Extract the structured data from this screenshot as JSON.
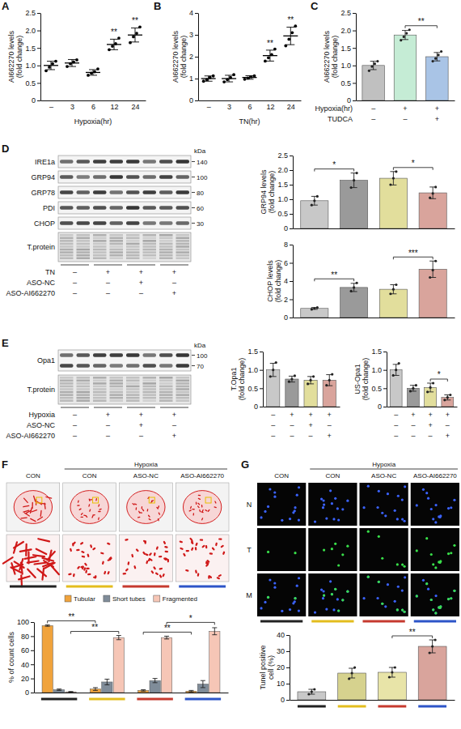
{
  "chart_data": [
    {
      "panel": "A",
      "type": "dot",
      "y_label": "AI662270 levels (fold change)",
      "x_label": "Hypoxia(hr)",
      "categories": [
        "–",
        "3",
        "6",
        "12",
        "24"
      ],
      "values": [
        1.0,
        1.07,
        0.8,
        1.6,
        1.87
      ],
      "errors": [
        0.12,
        0.1,
        0.08,
        0.15,
        0.2
      ],
      "points": [
        [
          0.85,
          0.95,
          1.05,
          1.12
        ],
        [
          0.97,
          1.05,
          1.1,
          1.16
        ],
        [
          0.72,
          0.78,
          0.82,
          0.9
        ],
        [
          1.45,
          1.55,
          1.62,
          1.78
        ],
        [
          1.65,
          1.82,
          1.92,
          2.1
        ]
      ],
      "color": "#000000",
      "ylim": [
        0,
        2.5
      ],
      "yticks": [
        0,
        0.5,
        {
          "value": 1,
          "label": "1.0"
        },
        1.5,
        {
          "value": 2,
          "label": "2.0"
        },
        2.5
      ],
      "annotations": [
        {
          "text": "**",
          "at": 3
        },
        {
          "text": "**",
          "at": 4
        }
      ]
    },
    {
      "panel": "B",
      "type": "dot",
      "y_label": "AI662270 levels (fold change)",
      "x_label": "TN(hr)",
      "categories": [
        "–",
        "3",
        "6",
        "12",
        "24"
      ],
      "values": [
        1.0,
        1.0,
        1.05,
        2.05,
        2.95
      ],
      "errors": [
        0.12,
        0.15,
        0.08,
        0.25,
        0.4
      ],
      "points": [
        [
          0.88,
          0.95,
          1.05,
          1.12
        ],
        [
          0.85,
          0.95,
          1.05,
          1.18
        ],
        [
          0.97,
          1.02,
          1.08,
          1.12
        ],
        [
          1.8,
          1.95,
          2.1,
          2.35
        ],
        [
          2.5,
          2.8,
          3.1,
          3.4
        ]
      ],
      "color": "#000000",
      "ylim": [
        0,
        4
      ],
      "yticks": [
        0,
        1,
        2,
        3,
        4
      ],
      "annotations": [
        {
          "text": "**",
          "at": 3
        },
        {
          "text": "**",
          "at": 4
        }
      ]
    },
    {
      "panel": "C",
      "type": "bar",
      "y_label": "AI662270 levels (fold change)",
      "categories": [
        null,
        null,
        null
      ],
      "values": [
        1.0,
        1.87,
        1.25
      ],
      "errors": [
        0.12,
        0.13,
        0.12
      ],
      "points": [
        [
          0.85,
          0.97,
          1.05,
          1.12
        ],
        [
          1.72,
          1.82,
          1.92,
          2.02
        ],
        [
          1.12,
          1.2,
          1.3,
          1.4
        ]
      ],
      "colors": [
        "#c0c0c0",
        "#c5ecd5",
        "#a9c4e6"
      ],
      "ylim": [
        0,
        2.5
      ],
      "yticks": [
        0,
        0.5,
        {
          "value": 1,
          "label": "1.0"
        },
        1.5,
        {
          "value": 2,
          "label": "2.0"
        },
        2.5
      ],
      "conditions": [
        {
          "label": "Hypoxia(hr)",
          "values": [
            "–",
            "+",
            "+"
          ]
        },
        {
          "label": "TUDCA",
          "values": [
            "–",
            "–",
            "+"
          ]
        }
      ],
      "annotations": [
        {
          "text": "**",
          "from": 1,
          "to": 2
        }
      ]
    },
    {
      "type": "bar",
      "y_label": "GRP94 levels (fold change)",
      "categories": [
        null,
        null,
        null,
        null
      ],
      "values": [
        0.95,
        1.65,
        1.72,
        1.22
      ],
      "errors": [
        0.15,
        0.25,
        0.23,
        0.2
      ],
      "points": [
        [
          0.8,
          0.95,
          1.1
        ],
        [
          1.4,
          1.65,
          1.9
        ],
        [
          1.5,
          1.72,
          1.95
        ],
        [
          1.05,
          1.2,
          1.42
        ]
      ],
      "colors": [
        "#c8c8c8",
        "#9a9a9a",
        "#e2de9c",
        "#d9a49c"
      ],
      "ylim": [
        0,
        2.5
      ],
      "yticks": [
        0,
        0.5,
        {
          "value": 1,
          "label": "1.0"
        },
        1.5,
        {
          "value": 2,
          "label": "2.0"
        },
        2.5
      ],
      "annotations": [
        {
          "text": "*",
          "from": 0,
          "to": 1
        },
        {
          "text": "*",
          "from": 2,
          "to": 3
        }
      ]
    },
    {
      "type": "bar",
      "y_label": "CHOP levels (fold change)",
      "categories": [
        null,
        null,
        null,
        null
      ],
      "values": [
        1.0,
        3.3,
        3.1,
        5.3
      ],
      "errors": [
        0.1,
        0.45,
        0.5,
        0.9
      ],
      "points": [
        [
          0.9,
          1.0,
          1.1
        ],
        [
          2.9,
          3.3,
          3.8
        ],
        [
          2.6,
          3.1,
          3.6
        ],
        [
          4.4,
          5.2,
          6.2
        ]
      ],
      "colors": [
        "#c8c8c8",
        "#9a9a9a",
        "#e2de9c",
        "#d9a49c"
      ],
      "ylim": [
        0,
        8
      ],
      "yticks": [
        0,
        2,
        4,
        6,
        8
      ],
      "annotations": [
        {
          "text": "**",
          "from": 0,
          "to": 1
        },
        {
          "text": "***",
          "from": 2,
          "to": 3
        }
      ]
    },
    {
      "type": "bar",
      "y_label": "T.Opa1 (fold change)",
      "categories": [
        null,
        null,
        null,
        null
      ],
      "values": [
        1.0,
        0.75,
        0.72,
        0.72
      ],
      "errors": [
        0.18,
        0.08,
        0.1,
        0.15
      ],
      "points": [
        [
          0.82,
          1.0,
          1.2
        ],
        [
          0.68,
          0.75,
          0.84
        ],
        [
          0.62,
          0.72,
          0.82
        ],
        [
          0.58,
          0.72,
          0.88
        ]
      ],
      "colors": [
        "#c8c8c8",
        "#9a9a9a",
        "#e2de9c",
        "#d9a49c"
      ],
      "ylim": [
        0,
        1.5
      ],
      "yticks": [
        0,
        0.5,
        {
          "value": 1,
          "label": "1.0"
        },
        1.5
      ],
      "conditions": [
        {
          "values": [
            "–",
            "+",
            "+",
            "+"
          ]
        },
        {
          "values": [
            "–",
            "–",
            "+",
            "–"
          ]
        },
        {
          "values": [
            "–",
            "–",
            "–",
            "+"
          ]
        }
      ]
    },
    {
      "type": "bar",
      "y_label": "US-Opa1 (fold change)",
      "categories": [
        null,
        null,
        null,
        null
      ],
      "values": [
        1.0,
        0.5,
        0.52,
        0.25
      ],
      "errors": [
        0.15,
        0.08,
        0.12,
        0.07
      ],
      "points": [
        [
          0.85,
          1.0,
          1.18
        ],
        [
          0.42,
          0.5,
          0.58
        ],
        [
          0.4,
          0.52,
          0.64
        ],
        [
          0.18,
          0.25,
          0.32
        ]
      ],
      "colors": [
        "#c8c8c8",
        "#9a9a9a",
        "#e2de9c",
        "#d9a49c"
      ],
      "ylim": [
        0,
        1.5
      ],
      "yticks": [
        0,
        0.5,
        {
          "value": 1,
          "label": "1.0"
        },
        1.5
      ],
      "conditions": [
        {
          "values": [
            "–",
            "+",
            "+",
            "+"
          ]
        },
        {
          "values": [
            "–",
            "–",
            "+",
            "–"
          ]
        },
        {
          "values": [
            "–",
            "–",
            "–",
            "+"
          ]
        }
      ],
      "annotations": [
        {
          "text": "*",
          "from": 2,
          "to": 3
        }
      ]
    },
    {
      "type": "bar",
      "y_label": "% of count cells",
      "categories": [
        null,
        null,
        null,
        null
      ],
      "series": [
        {
          "name": "Tubular",
          "color": "#f0a33c",
          "values": [
            95,
            5,
            3,
            2
          ],
          "errors": [
            1,
            2,
            1,
            1
          ]
        },
        {
          "name": "Short tubes",
          "color": "#7f8c99",
          "values": [
            4,
            15,
            17,
            12
          ],
          "errors": [
            1,
            4,
            3,
            5
          ]
        },
        {
          "name": "Fragmented",
          "color": "#f6c6b6",
          "values": [
            1,
            78,
            78,
            87
          ],
          "errors": [
            0.5,
            3,
            2,
            5
          ]
        }
      ],
      "ylim": [
        0,
        100
      ],
      "yticks": [
        0,
        20,
        40,
        60,
        80,
        100
      ],
      "legend": "top",
      "annotations": [
        {
          "text": "**",
          "from": [
            0,
            0
          ],
          "to": [
            1,
            0
          ]
        },
        {
          "text": "**",
          "from": [
            0,
            2
          ],
          "to": [
            1,
            2
          ]
        },
        {
          "text": "**",
          "from": [
            2,
            0
          ],
          "to": [
            3,
            0
          ]
        },
        {
          "text": "*",
          "from": [
            2,
            2
          ],
          "to": [
            3,
            2
          ]
        }
      ]
    },
    {
      "type": "bar",
      "y_label": "Tunel positive cell (%)",
      "categories": [
        null,
        null,
        null,
        null
      ],
      "values": [
        5,
        16.5,
        17,
        33
      ],
      "errors": [
        1.5,
        3,
        3,
        4
      ],
      "points": [
        [
          3.5,
          5,
          6.5
        ],
        [
          13,
          16.5,
          20
        ],
        [
          14,
          17,
          20
        ],
        [
          29,
          33,
          37
        ]
      ],
      "colors": [
        "#c8c8c8",
        "#d6d28e",
        "#e8e4a8",
        "#d9a49c"
      ],
      "ylim": [
        0,
        40
      ],
      "yticks": [
        0,
        10,
        20,
        30,
        40
      ],
      "annotations": [
        {
          "text": "**",
          "from": 2,
          "to": 3
        }
      ]
    }
  ],
  "blots": [
    {
      "panel": "D",
      "kda": "kDa",
      "rows": [
        {
          "label": "IRE1a",
          "mw": [
            140
          ]
        },
        {
          "label": "GRP94",
          "mw": [
            100
          ]
        },
        {
          "label": "GRP78",
          "mw": [
            80
          ]
        },
        {
          "label": "PDI",
          "mw": [
            60
          ]
        },
        {
          "label": "CHOP",
          "mw": [
            30
          ]
        }
      ],
      "total": "T.protein",
      "conditions": [
        {
          "label": "TN",
          "values": [
            "–",
            "+",
            "+",
            "+"
          ]
        },
        {
          "label": "ASO-NC",
          "values": [
            "–",
            "–",
            "+",
            "–"
          ]
        },
        {
          "label": "ASO-AI662270",
          "values": [
            "–",
            "–",
            "–",
            "+"
          ]
        }
      ]
    },
    {
      "panel": "E",
      "kda": "kDa",
      "rows": [
        {
          "label": "Opa1",
          "mw": [
            100,
            70
          ]
        }
      ],
      "total": "T.protein",
      "conditions": [
        {
          "label": "Hypoxia",
          "values": [
            "–",
            "+",
            "+",
            "+"
          ]
        },
        {
          "label": "ASO-NC",
          "values": [
            "–",
            "–",
            "+",
            "–"
          ]
        },
        {
          "label": "ASO-AI662270",
          "values": [
            "–",
            "–",
            "–",
            "+"
          ]
        }
      ]
    }
  ],
  "images": [
    {
      "panel": "F",
      "group_label": "Hypoxia",
      "columns": [
        "CON",
        "CON",
        "ASO-NC",
        "ASO-AI662270"
      ],
      "rows": []
    },
    {
      "panel": "G",
      "group_label": "Hypoxia",
      "columns": [
        "CON",
        "CON",
        "ASO-NC",
        "ASO-AI662270"
      ],
      "rows": [
        "N",
        "T",
        "M"
      ]
    }
  ]
}
